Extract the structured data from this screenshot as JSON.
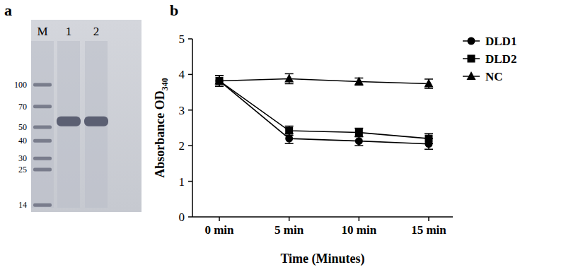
{
  "gel": {
    "panel_label": "a",
    "lanes": [
      {
        "label": "M",
        "bands": [
          100,
          70,
          50,
          40,
          30,
          25,
          14
        ]
      },
      {
        "label": "1",
        "bands": [
          55
        ]
      },
      {
        "label": "2",
        "bands": [
          55
        ]
      }
    ],
    "marker_labels": [
      100,
      70,
      50,
      40,
      30,
      25,
      14
    ]
  },
  "chart_data": {
    "type": "line",
    "panel_label": "b",
    "x_label": "Time (Minutes)",
    "y_label": "Absorbance OD340",
    "categories": [
      "0 min",
      "5 min",
      "10 min",
      "15 min"
    ],
    "series": [
      {
        "name": "DLD1",
        "color": "#000000",
        "marker": "circle",
        "values": [
          3.82,
          2.2,
          2.13,
          2.05
        ],
        "errors": [
          0.15,
          0.14,
          0.13,
          0.15
        ]
      },
      {
        "name": "DLD2",
        "color": "#000000",
        "marker": "square",
        "values": [
          3.82,
          2.42,
          2.37,
          2.2
        ],
        "errors": [
          0.15,
          0.13,
          0.12,
          0.14
        ]
      },
      {
        "name": "NC",
        "color": "#000000",
        "marker": "triangle",
        "values": [
          3.82,
          3.88,
          3.8,
          3.74
        ],
        "errors": [
          0.15,
          0.14,
          0.1,
          0.13
        ]
      }
    ],
    "ylim": [
      0,
      5
    ],
    "yticks": [
      0,
      1,
      2,
      3,
      4,
      5
    ],
    "grid": false,
    "legend": "right"
  }
}
